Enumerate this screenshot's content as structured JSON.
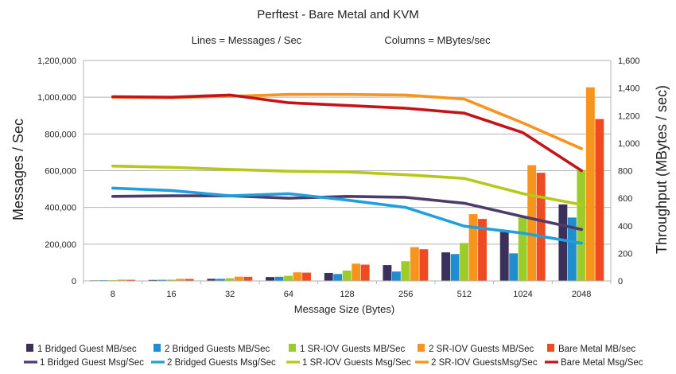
{
  "chart_data": {
    "type": "bar",
    "title": "Perftest - Bare Metal and KVM",
    "subtitle_left": "Lines = Messages / Sec",
    "subtitle_right": "Columns = MBytes/sec",
    "xlabel": "Message Size (Bytes)",
    "ylabel_left": "Messages / Sec",
    "ylabel_right": "Throughput (MBytes / sec)",
    "categories": [
      "8",
      "16",
      "32",
      "64",
      "128",
      "256",
      "512",
      "1024",
      "2048"
    ],
    "ylim_left": [
      0,
      1200000
    ],
    "ylim_right": [
      0,
      1600
    ],
    "yticks_left": [
      "0",
      "200,000",
      "400,000",
      "600,000",
      "800,000",
      "1,000,000",
      "1,200,000"
    ],
    "yticks_right": [
      "0",
      "200",
      "400",
      "600",
      "800",
      "1,000",
      "1,200",
      "1,400",
      "1,600"
    ],
    "grid": "horizontal",
    "legend_position": "bottom",
    "bar_series": [
      {
        "name": "1 Bridged Guest MB/sec",
        "color": "#3b2f5b",
        "values": [
          4,
          7,
          15,
          28,
          58,
          115,
          207,
          355,
          555
        ]
      },
      {
        "name": "2 Bridged Guests MB/Sec",
        "color": "#1f8dd0",
        "values": [
          5,
          8,
          15,
          30,
          50,
          68,
          195,
          200,
          460
        ]
      },
      {
        "name": "1 SR-IOV Guests MB/Sec",
        "color": "#9ccb2a",
        "values": [
          5,
          9,
          19,
          37,
          75,
          143,
          275,
          460,
          805
        ]
      },
      {
        "name": "2 SR-IOV Guests MB/Sec",
        "color": "#f7941d",
        "values": [
          9,
          15,
          31,
          62,
          125,
          245,
          485,
          840,
          1405
        ]
      },
      {
        "name": "Bare Metal MB/sec",
        "color": "#ee4b22",
        "values": [
          8,
          14,
          30,
          60,
          118,
          230,
          450,
          785,
          1175
        ]
      }
    ],
    "line_series": [
      {
        "name": "1 Bridged Guest Msg/Sec",
        "color": "#4d3b6b",
        "values": [
          460000,
          463000,
          463000,
          450000,
          460000,
          455000,
          423000,
          350000,
          280000
        ]
      },
      {
        "name": "2 Bridged Guests Msg/Sec",
        "color": "#1f9fdc",
        "values": [
          505000,
          492000,
          463000,
          475000,
          440000,
          400000,
          298000,
          260000,
          205000
        ]
      },
      {
        "name": "1 SR-IOV Guests Msg/Sec",
        "color": "#b6c91a",
        "values": [
          625000,
          618000,
          607000,
          597000,
          593000,
          578000,
          558000,
          475000,
          415000
        ]
      },
      {
        "name": "2 SR-IOV GuestsMsg/Sec",
        "color": "#f7941d",
        "values": [
          1000000,
          998000,
          1005000,
          1015000,
          1015000,
          1012000,
          990000,
          860000,
          720000
        ]
      },
      {
        "name": "Bare Metal Msg/Sec",
        "color": "#c41419",
        "values": [
          1003000,
          1000000,
          1012000,
          970000,
          955000,
          940000,
          913000,
          807000,
          600000
        ]
      }
    ]
  }
}
